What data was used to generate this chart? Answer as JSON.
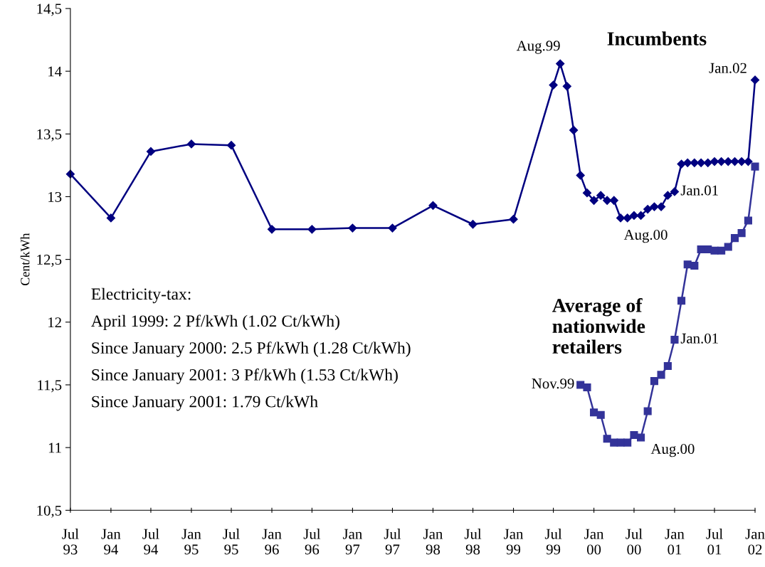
{
  "chart_data": {
    "type": "line",
    "ylabel": "Cent/kWh",
    "x": [
      "1993-07",
      "1994-01",
      "1994-07",
      "1995-01",
      "1995-07",
      "1996-01",
      "1996-07",
      "1997-01",
      "1997-07",
      "1998-01",
      "1998-07",
      "1999-01",
      "1999-07",
      "1999-08",
      "1999-09",
      "1999-10",
      "1999-11",
      "1999-12",
      "2000-01",
      "2000-02",
      "2000-03",
      "2000-04",
      "2000-05",
      "2000-06",
      "2000-07",
      "2000-08",
      "2000-09",
      "2000-10",
      "2000-11",
      "2000-12",
      "2001-01",
      "2001-02",
      "2001-03",
      "2001-04",
      "2001-05",
      "2001-06",
      "2001-07",
      "2001-08",
      "2001-09",
      "2001-10",
      "2001-11",
      "2001-12",
      "2002-01"
    ],
    "series": [
      {
        "name": "Incumbents",
        "color": "#000080",
        "marker": "diamond",
        "values": [
          13.18,
          12.83,
          13.36,
          13.42,
          13.41,
          12.74,
          12.74,
          12.75,
          12.75,
          12.93,
          12.78,
          12.82,
          13.89,
          14.06,
          13.88,
          13.53,
          13.17,
          13.03,
          12.97,
          13.01,
          12.97,
          12.97,
          12.83,
          12.83,
          12.85,
          12.85,
          12.9,
          12.92,
          12.92,
          13.01,
          13.04,
          13.26,
          13.27,
          13.27,
          13.27,
          13.27,
          13.28,
          13.28,
          13.28,
          13.28,
          13.28,
          13.28,
          13.93
        ]
      },
      {
        "name": "Average of\nnationwide\nretailers",
        "color": "#333399",
        "marker": "square",
        "x": [
          "1999-11",
          "1999-12",
          "2000-01",
          "2000-02",
          "2000-03",
          "2000-04",
          "2000-05",
          "2000-06",
          "2000-07",
          "2000-08",
          "2000-09",
          "2000-10",
          "2000-11",
          "2000-12",
          "2001-01",
          "2001-02",
          "2001-03",
          "2001-04",
          "2001-05",
          "2001-06",
          "2001-07",
          "2001-08",
          "2001-09",
          "2001-10",
          "2001-11",
          "2001-12",
          "2002-01"
        ],
        "values": [
          11.5,
          11.48,
          11.28,
          11.26,
          11.07,
          11.04,
          11.04,
          11.04,
          11.1,
          11.08,
          11.29,
          11.53,
          11.58,
          11.65,
          11.86,
          12.17,
          12.46,
          12.45,
          12.58,
          12.58,
          12.57,
          12.57,
          12.6,
          12.67,
          12.71,
          12.81,
          13.24
        ]
      }
    ],
    "ylim": [
      10.5,
      14.5
    ],
    "yticks": [
      {
        "value": 10.5,
        "label": "10,5"
      },
      11,
      {
        "value": 11.5,
        "label": "11,5"
      },
      12,
      {
        "value": 12.5,
        "label": "12,5"
      },
      13,
      {
        "value": 13.5,
        "label": "13,5"
      },
      14,
      {
        "value": 14.5,
        "label": "14,5"
      }
    ],
    "xlim": [
      "1993-07",
      "2002-01"
    ],
    "xticks": [
      {
        "value": "1993-07",
        "label": "Jul\n93"
      },
      {
        "value": "1994-01",
        "label": "Jan\n94"
      },
      {
        "value": "1994-07",
        "label": "Jul\n94"
      },
      {
        "value": "1995-01",
        "label": "Jan\n95"
      },
      {
        "value": "1995-07",
        "label": "Jul\n95"
      },
      {
        "value": "1996-01",
        "label": "Jan\n96"
      },
      {
        "value": "1996-07",
        "label": "Jul\n96"
      },
      {
        "value": "1997-01",
        "label": "Jan\n97"
      },
      {
        "value": "1997-07",
        "label": "Jul\n97"
      },
      {
        "value": "1998-01",
        "label": "Jan\n98"
      },
      {
        "value": "1998-07",
        "label": "Jul\n98"
      },
      {
        "value": "1999-01",
        "label": "Jan\n99"
      },
      {
        "value": "1999-07",
        "label": "Jul\n99"
      },
      {
        "value": "2000-01",
        "label": "Jan\n00"
      },
      {
        "value": "2000-07",
        "label": "Jul\n00"
      },
      {
        "value": "2001-01",
        "label": "Jan\n01"
      },
      {
        "value": "2001-07",
        "label": "Jul\n01"
      },
      {
        "value": "2002-01",
        "label": "Jan\n02"
      }
    ],
    "grid": false,
    "legend": false,
    "line_style": "solid",
    "annotations": [
      {
        "text": "Aug.99",
        "x": "1999-08",
        "y": 14.06
      },
      {
        "text": "Jan.02",
        "x": "2002-01",
        "y": 13.93
      },
      {
        "text": "Jan.01",
        "x": "2001-01",
        "y": 13.04
      },
      {
        "text": "Aug.00",
        "x": "2000-08",
        "y": 12.85
      },
      {
        "text": "Nov.99",
        "x": "1999-11",
        "y": 11.5
      },
      {
        "text": "Jan.01",
        "x": "2001-01",
        "y": 11.86
      },
      {
        "text": "Aug.00",
        "x": "2000-08",
        "y": 11.08
      },
      "Electricity-tax:",
      "April 1999: 2 Pf/kWh (1.02 Ct/kWh)",
      "Since January 2000: 2.5 Pf/kWh (1.28 Ct/kWh)",
      "Since January 2001: 3 Pf/kWh (1.53 Ct/kWh)",
      "Since January 2001: 1.79 Ct/kWh"
    ]
  }
}
